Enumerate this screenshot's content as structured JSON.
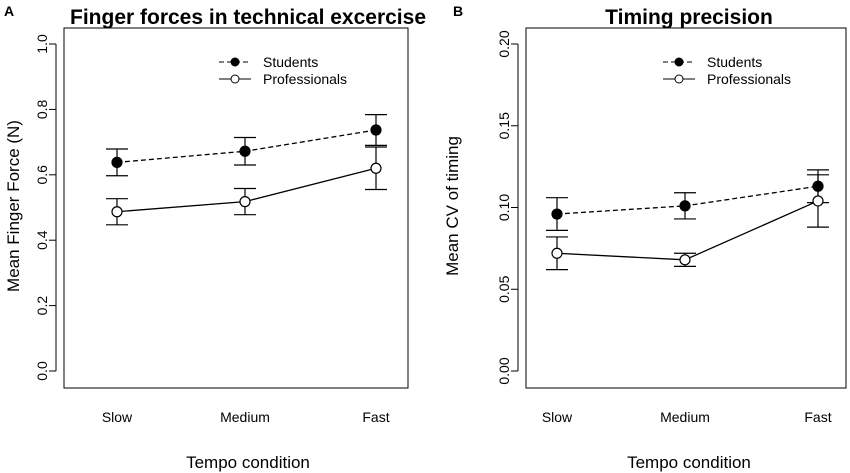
{
  "chart_data": [
    {
      "panel": "A",
      "type": "line",
      "title": "Finger forces in technical excercise",
      "xlabel": "Tempo condition",
      "ylabel": "Mean Finger Force (N)",
      "categories": [
        "Slow",
        "Medium",
        "Fast"
      ],
      "ylim": [
        0.0,
        1.0
      ],
      "yticks": [
        "0.0",
        "0.2",
        "0.4",
        "0.6",
        "0.8",
        "1.0"
      ],
      "series": [
        {
          "name": "Students",
          "style": "dashed",
          "marker": "filled",
          "values": [
            0.638,
            0.672,
            0.737
          ],
          "err_low": [
            0.597,
            0.63,
            0.69
          ],
          "err_high": [
            0.679,
            0.714,
            0.784
          ]
        },
        {
          "name": "Professionals",
          "style": "solid",
          "marker": "open",
          "values": [
            0.487,
            0.518,
            0.62
          ],
          "err_low": [
            0.447,
            0.478,
            0.555
          ],
          "err_high": [
            0.527,
            0.558,
            0.685
          ]
        }
      ],
      "legend_position": "top-right"
    },
    {
      "panel": "B",
      "type": "line",
      "title": "Timing precision",
      "xlabel": "Tempo condition",
      "ylabel": "Mean CV of timing",
      "categories": [
        "Slow",
        "Medium",
        "Fast"
      ],
      "ylim": [
        0.0,
        0.2
      ],
      "yticks": [
        "0.00",
        "0.05",
        "0.10",
        "0.15",
        "0.20"
      ],
      "series": [
        {
          "name": "Students",
          "style": "dashed",
          "marker": "filled",
          "values": [
            0.096,
            0.101,
            0.113
          ],
          "err_low": [
            0.086,
            0.093,
            0.103
          ],
          "err_high": [
            0.106,
            0.109,
            0.123
          ]
        },
        {
          "name": "Professionals",
          "style": "solid",
          "marker": "open",
          "values": [
            0.072,
            0.068,
            0.104
          ],
          "err_low": [
            0.062,
            0.064,
            0.088
          ],
          "err_high": [
            0.082,
            0.072,
            0.12
          ]
        }
      ],
      "legend_position": "top-right"
    }
  ]
}
